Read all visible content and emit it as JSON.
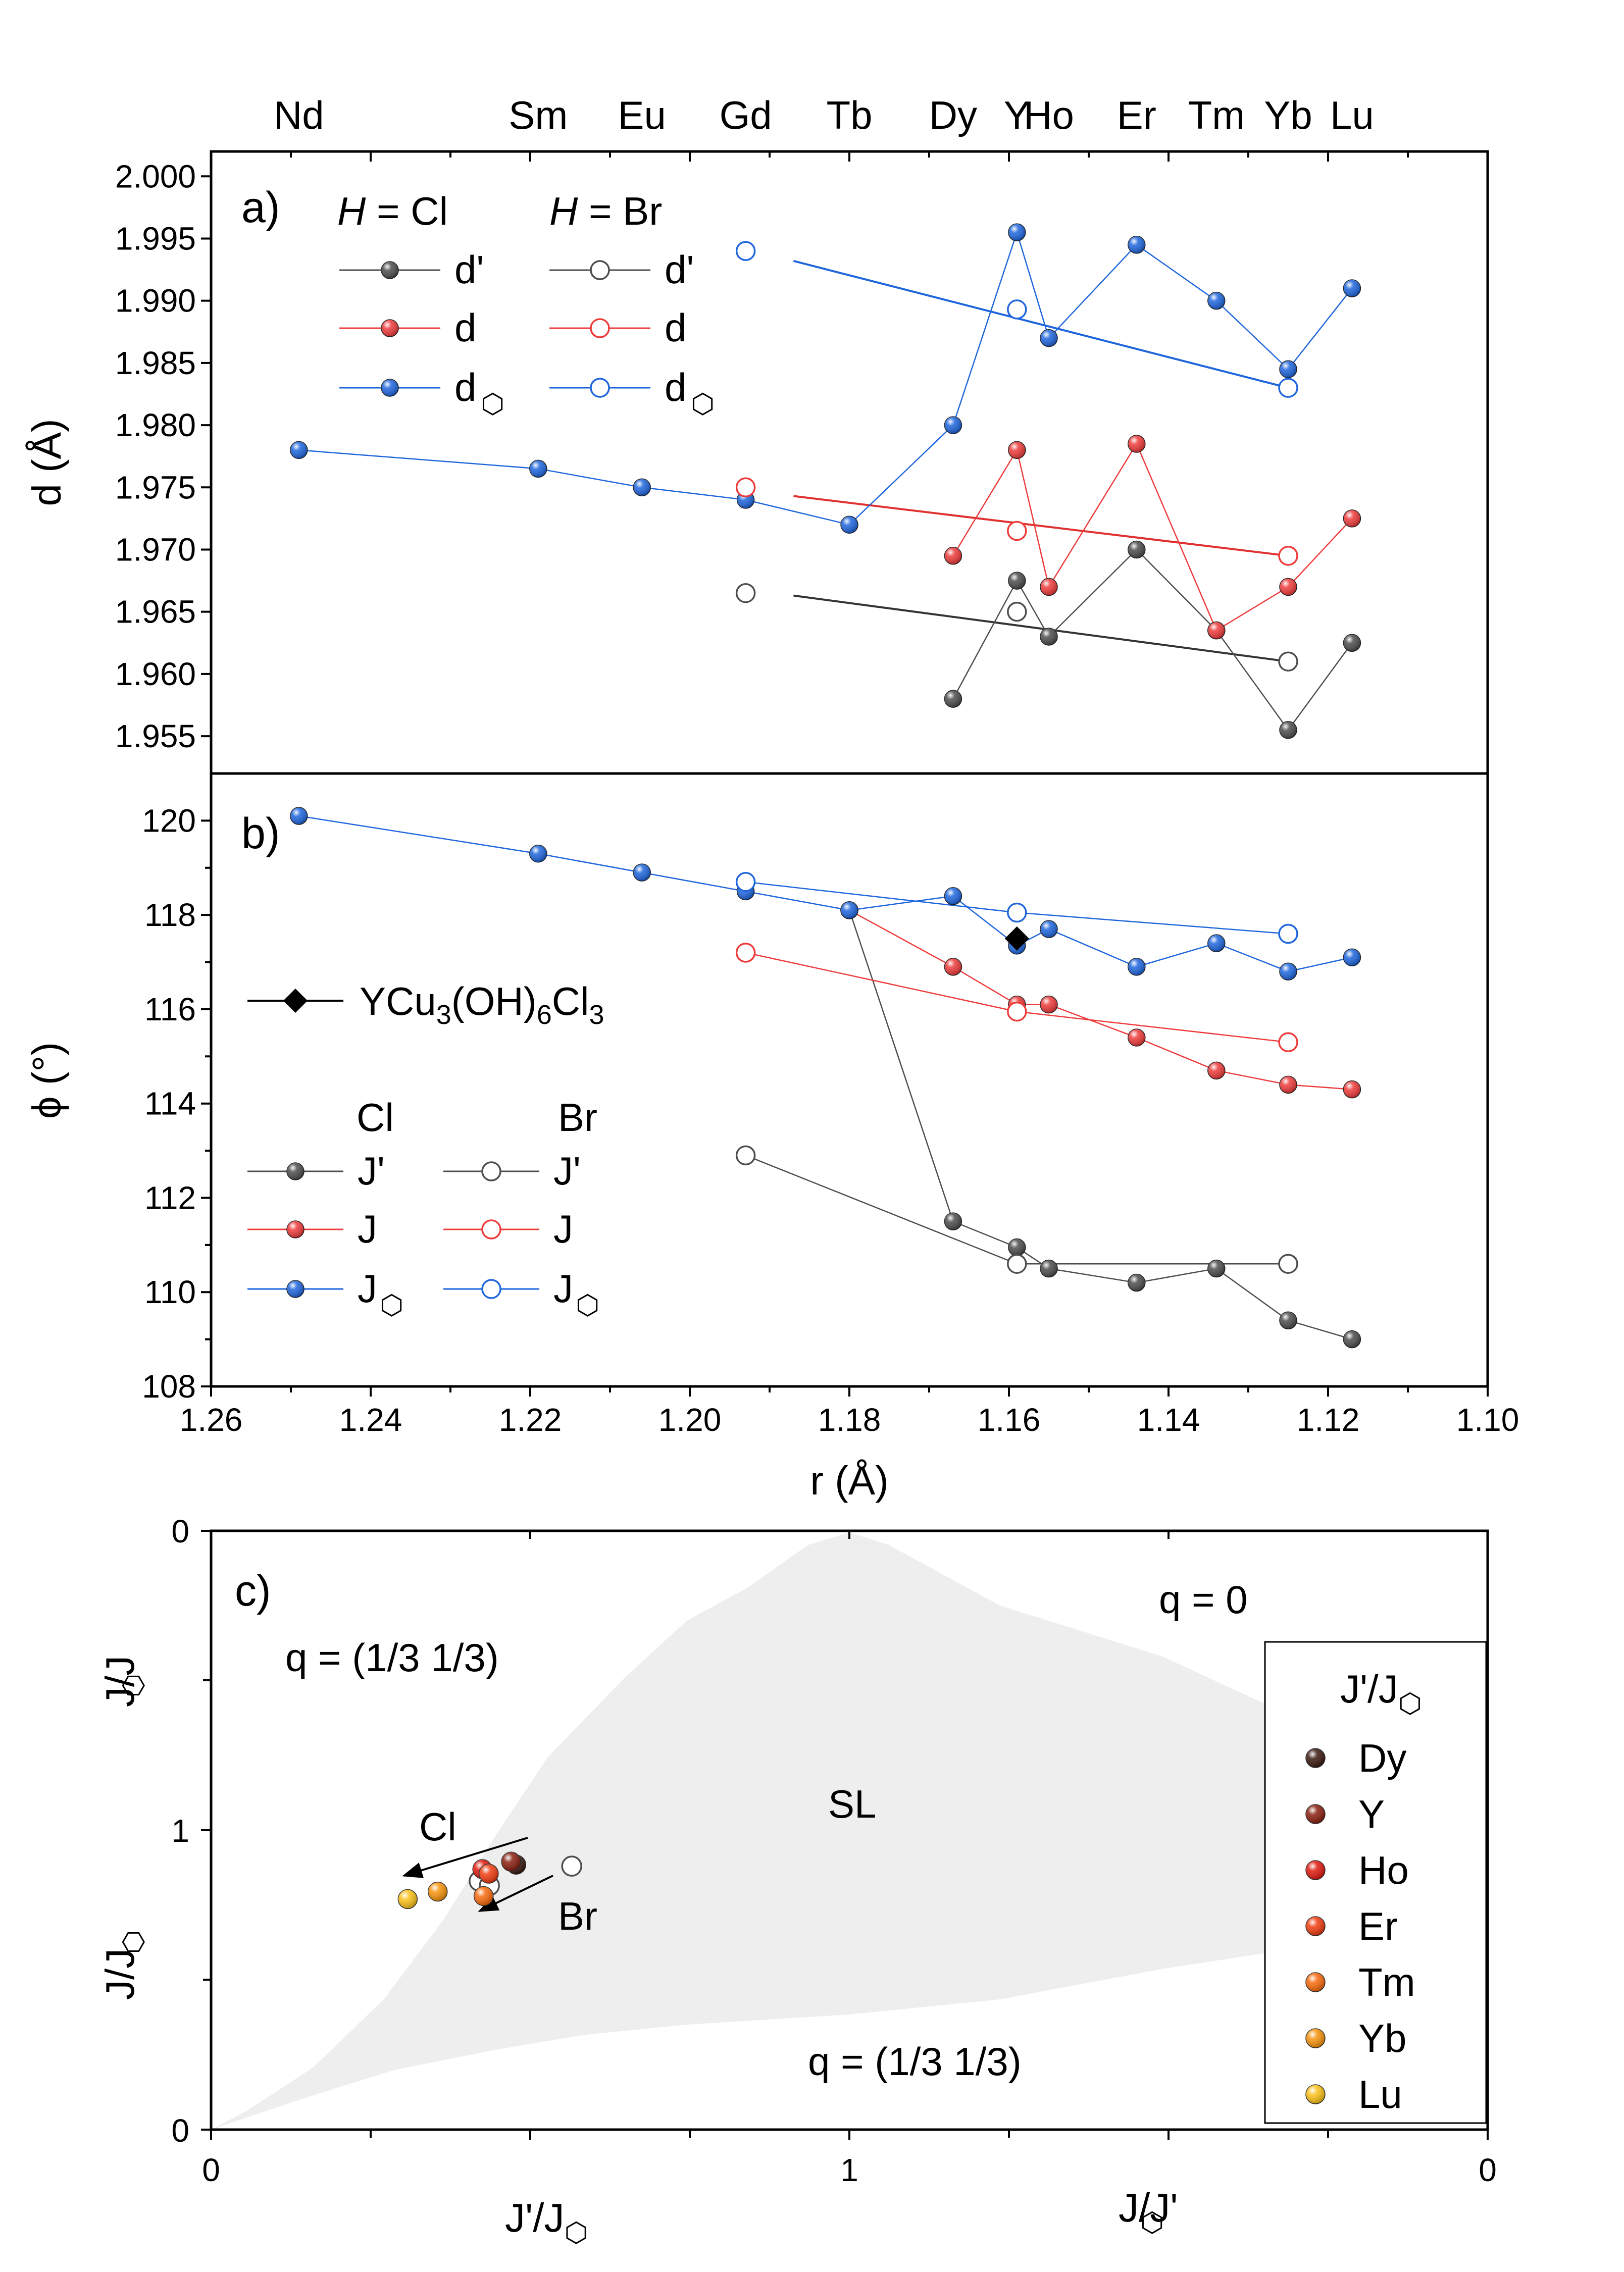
{
  "chart_data": [
    {
      "panel": "a)",
      "type": "line",
      "ylabel": "d (Å)",
      "ylim": [
        1.952,
        2.002
      ],
      "xlim": [
        1.26,
        1.1
      ],
      "yticks": [
        "1.955",
        "1.960",
        "1.965",
        "1.970",
        "1.975",
        "1.980",
        "1.985",
        "1.990",
        "1.995",
        "2.000"
      ],
      "legend": {
        "cl_header_italic": "H",
        "cl_header_rest": " = Cl",
        "br_header_italic": "H",
        "br_header_rest": " = Br",
        "dprime": "d'",
        "d": "d",
        "dhex": "d",
        "hex_glyph": "⬡"
      },
      "series": [
        {
          "name": "d' Cl",
          "color": "#4d4d4d",
          "filled": true,
          "x": [
            1.167,
            1.159,
            1.155,
            1.144,
            1.134,
            1.125,
            1.117
          ],
          "y": [
            1.958,
            1.9675,
            1.963,
            1.97,
            1.9635,
            1.9555,
            1.9625
          ]
        },
        {
          "name": "d Cl",
          "color": "#ee3b3b",
          "filled": true,
          "x": [
            1.167,
            1.159,
            1.155,
            1.144,
            1.134,
            1.125,
            1.117
          ],
          "y": [
            1.9695,
            1.978,
            1.967,
            1.9785,
            1.9635,
            1.967,
            1.9725
          ]
        },
        {
          "name": "d_hex Cl",
          "color": "#1f66dd",
          "filled": true,
          "x": [
            1.249,
            1.219,
            1.206,
            1.193,
            1.18,
            1.167,
            1.159,
            1.155,
            1.144,
            1.134,
            1.125,
            1.117
          ],
          "y": [
            1.978,
            1.9765,
            1.975,
            1.974,
            1.972,
            1.98,
            1.9955,
            1.987,
            1.9945,
            1.99,
            1.9845,
            1.991
          ]
        },
        {
          "name": "d' Br",
          "color": "#4d4d4d",
          "filled": false,
          "x": [
            1.193,
            1.159,
            1.125
          ],
          "y": [
            1.9665,
            1.965,
            1.961
          ]
        },
        {
          "name": "d Br",
          "color": "#ee3b3b",
          "filled": false,
          "x": [
            1.193,
            1.159,
            1.125
          ],
          "y": [
            1.975,
            1.9715,
            1.9695
          ]
        },
        {
          "name": "d_hex Br",
          "color": "#1f66dd",
          "filled": false,
          "x": [
            1.193,
            1.159,
            1.125
          ],
          "y": [
            1.994,
            1.9893,
            1.983
          ]
        }
      ],
      "fits": [
        {
          "color": "#333333",
          "x": [
            1.187,
            1.125
          ],
          "y": [
            1.9663,
            1.961
          ]
        },
        {
          "color": "#e03030",
          "x": [
            1.187,
            1.125
          ],
          "y": [
            1.9743,
            1.9695
          ]
        },
        {
          "color": "#1f66dd",
          "x": [
            1.187,
            1.125
          ],
          "y": [
            1.9932,
            1.983
          ]
        }
      ]
    },
    {
      "panel": "b)",
      "type": "line",
      "ylabel": "ϕ (°)",
      "ylim": [
        108,
        121
      ],
      "xlim": [
        1.26,
        1.1
      ],
      "yticks": [
        "108",
        "110",
        "112",
        "114",
        "116",
        "118",
        "120"
      ],
      "xticks": [
        "1.26",
        "1.24",
        "1.22",
        "1.20",
        "1.18",
        "1.16",
        "1.14",
        "1.12",
        "1.10"
      ],
      "xlabel": "r (Å)",
      "top_labels": [
        {
          "label": "Nd",
          "x": 1.249
        },
        {
          "label": "Sm",
          "x": 1.219
        },
        {
          "label": "Eu",
          "x": 1.206
        },
        {
          "label": "Gd",
          "x": 1.193
        },
        {
          "label": "Tb",
          "x": 1.18
        },
        {
          "label": "Dy",
          "x": 1.167
        },
        {
          "label": "Y",
          "x": 1.159
        },
        {
          "label": "Ho",
          "x": 1.155
        },
        {
          "label": "Er",
          "x": 1.144
        },
        {
          "label": "Tm",
          "x": 1.134
        },
        {
          "label": "Yb",
          "x": 1.125
        },
        {
          "label": "Lu",
          "x": 1.117
        }
      ],
      "legend": {
        "ycu": "YCu",
        "ycu_sub1": "3",
        "ycu_mid": "(OH)",
        "ycu_sub2": "6",
        "ycu_end": "Cl",
        "ycu_sub3": "3",
        "cl": "Cl",
        "br": "Br",
        "jprime": "J'",
        "j": "J",
        "jhex": "J",
        "hex_glyph": "⬡"
      },
      "series": [
        {
          "name": "J' Cl",
          "color": "#4d4d4d",
          "filled": true,
          "x": [
            1.18,
            1.167,
            1.159,
            1.155,
            1.144,
            1.134,
            1.125,
            1.117
          ],
          "y": [
            118.1,
            111.5,
            110.95,
            110.5,
            110.2,
            110.5,
            109.4,
            109.0
          ]
        },
        {
          "name": "J Cl",
          "color": "#ee3b3b",
          "filled": true,
          "x": [
            1.18,
            1.167,
            1.159,
            1.155,
            1.144,
            1.134,
            1.125,
            1.117
          ],
          "y": [
            118.1,
            116.9,
            116.1,
            116.1,
            115.4,
            114.7,
            114.4,
            114.3
          ]
        },
        {
          "name": "J_hex Cl",
          "color": "#1f66dd",
          "filled": true,
          "x": [
            1.249,
            1.219,
            1.206,
            1.193,
            1.18,
            1.167,
            1.159,
            1.155,
            1.144,
            1.134,
            1.125,
            1.117
          ],
          "y": [
            120.1,
            119.3,
            118.9,
            118.5,
            118.1,
            118.4,
            117.35,
            117.7,
            116.9,
            117.4,
            116.8,
            117.1
          ]
        },
        {
          "name": "J' Br",
          "color": "#4d4d4d",
          "filled": false,
          "x": [
            1.193,
            1.159,
            1.125
          ],
          "y": [
            112.9,
            110.6,
            110.6
          ]
        },
        {
          "name": "J Br",
          "color": "#ee3b3b",
          "filled": false,
          "x": [
            1.193,
            1.159,
            1.125
          ],
          "y": [
            117.2,
            115.95,
            115.3
          ]
        },
        {
          "name": "J_hex Br",
          "color": "#1f66dd",
          "filled": false,
          "x": [
            1.193,
            1.159,
            1.125
          ],
          "y": [
            118.7,
            118.05,
            117.6
          ]
        },
        {
          "name": "YCu3(OH)6Cl3",
          "color": "#000000",
          "marker": "diamond",
          "x": [
            1.159
          ],
          "y": [
            117.5
          ]
        }
      ]
    },
    {
      "panel": "c)",
      "type": "scatter",
      "region_labels": {
        "q0": "q = 0",
        "q_top": "q = (1/3 1/3)",
        "sl": "SL",
        "q_bottom": "q = (1/3 1/3)"
      },
      "xticks_bottom": [
        "0",
        "1",
        "0"
      ],
      "xlabel_left": "J'/J",
      "xlabel_right": "J/J'",
      "yticks_left": [
        "0",
        "1",
        "0"
      ],
      "ylabel_top": "J/J",
      "ylabel_bottom": "J/J",
      "arrow_labels": {
        "cl": "Cl",
        "br": "Br"
      },
      "legend_title": "J'/J",
      "hex_glyph": "⬡",
      "legend": [
        {
          "label": "Dy",
          "color": "#3a1a10"
        },
        {
          "label": "Y",
          "color": "#8a1f10"
        },
        {
          "label": "Ho",
          "color": "#e01a10"
        },
        {
          "label": "Er",
          "color": "#f03c10"
        },
        {
          "label": "Tm",
          "color": "#f86a0c"
        },
        {
          "label": "Yb",
          "color": "#f7940c"
        },
        {
          "label": "Lu",
          "color": "#fbc21a"
        }
      ],
      "points_cl": [
        {
          "label": "Dy",
          "x": 0.478,
          "y": 0.885
        },
        {
          "label": "Y",
          "x": 0.47,
          "y": 0.895
        },
        {
          "label": "Ho",
          "x": 0.425,
          "y": 0.87
        },
        {
          "label": "Er",
          "x": 0.435,
          "y": 0.855
        },
        {
          "label": "Tm",
          "x": 0.427,
          "y": 0.78
        },
        {
          "label": "Yb",
          "x": 0.355,
          "y": 0.795
        },
        {
          "label": "Lu",
          "x": 0.308,
          "y": 0.77
        }
      ],
      "points_br": [
        {
          "label": "Gd",
          "x": 0.565,
          "y": 0.88
        },
        {
          "label": "Y",
          "x": 0.42,
          "y": 0.83
        },
        {
          "label": "Yb",
          "x": 0.436,
          "y": 0.815
        }
      ]
    }
  ]
}
